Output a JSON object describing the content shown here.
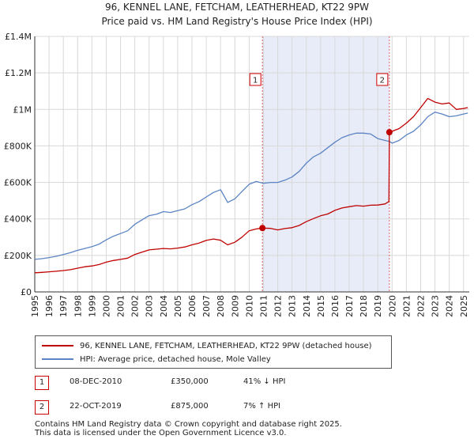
{
  "colors": {
    "price_line": "#c00000",
    "hpi_line": "#5b84c4",
    "shade": "#e8ecf8",
    "marker_box": "#cc0000",
    "grid": "#d8d8d8"
  },
  "title_line1": "96, KENNEL LANE, FETCHAM, LEATHERHEAD, KT22 9PW",
  "title_line2": "Price paid vs. HM Land Registry's House Price Index (HPI)",
  "chart_data": {
    "type": "line",
    "title": "96, KENNEL LANE, FETCHAM, LEATHERHEAD, KT22 9PW — Price paid vs. HM Land Registry's House Price Index (HPI)",
    "xlim": [
      1995,
      2025.4
    ],
    "ylim": [
      0,
      1400000
    ],
    "y_ticks": [
      0,
      200000,
      400000,
      600000,
      800000,
      1000000,
      1200000,
      1400000
    ],
    "y_tick_labels": [
      "£0",
      "£200K",
      "£400K",
      "£600K",
      "£800K",
      "£1M",
      "£1.2M",
      "£1.4M"
    ],
    "x_ticks": [
      1995,
      1996,
      1997,
      1998,
      1999,
      2000,
      2001,
      2002,
      2003,
      2004,
      2005,
      2006,
      2007,
      2008,
      2009,
      2010,
      2011,
      2012,
      2013,
      2014,
      2015,
      2016,
      2017,
      2018,
      2019,
      2020,
      2021,
      2022,
      2023,
      2024,
      2025
    ],
    "x_tick_labels": [
      "1995",
      "1996",
      "1997",
      "1998",
      "1999",
      "2000",
      "2001",
      "2002",
      "2003",
      "2004",
      "2005",
      "2006",
      "2007",
      "2008",
      "2009",
      "2010",
      "2011",
      "2012",
      "2013",
      "2014",
      "2015",
      "2016",
      "2017",
      "2018",
      "2019",
      "2020",
      "2021",
      "2022",
      "2023",
      "2024",
      "2025"
    ],
    "shaded_range": [
      2010.93,
      2019.81
    ],
    "series": [
      {
        "name": "96, KENNEL LANE, FETCHAM, LEATHERHEAD, KT22 9PW (detached house)",
        "x": [
          1995,
          1995.5,
          1996,
          1996.5,
          1997,
          1997.5,
          1998,
          1998.5,
          1999,
          1999.5,
          2000,
          2000.5,
          2001,
          2001.5,
          2002,
          2002.5,
          2003,
          2003.5,
          2004,
          2004.5,
          2005,
          2005.5,
          2006,
          2006.5,
          2007,
          2007.5,
          2008,
          2008.5,
          2009,
          2009.5,
          2010,
          2010.5,
          2010.93,
          2011.5,
          2012,
          2012.5,
          2013,
          2013.5,
          2014,
          2014.5,
          2015,
          2015.5,
          2016,
          2016.5,
          2017,
          2017.5,
          2018,
          2018.5,
          2019,
          2019.5,
          2019.78,
          2019.81,
          2020,
          2020.5,
          2021,
          2021.5,
          2022,
          2022.5,
          2023,
          2023.5,
          2024,
          2024.5,
          2025,
          2025.3
        ],
        "y": [
          105000,
          107000,
          110000,
          113000,
          117000,
          122000,
          130000,
          138000,
          142000,
          150000,
          163000,
          172000,
          178000,
          185000,
          205000,
          218000,
          230000,
          234000,
          238000,
          236000,
          240000,
          246000,
          258000,
          268000,
          282000,
          290000,
          283000,
          258000,
          272000,
          300000,
          335000,
          345000,
          350000,
          348000,
          340000,
          347000,
          352000,
          364000,
          385000,
          402000,
          417000,
          427000,
          447000,
          460000,
          467000,
          473000,
          470000,
          475000,
          476000,
          482000,
          495000,
          875000,
          880000,
          895000,
          925000,
          960000,
          1010000,
          1060000,
          1040000,
          1030000,
          1035000,
          1000000,
          1005000,
          1010000
        ]
      },
      {
        "name": "HPI: Average price, detached house, Mole Valley",
        "x": [
          1995,
          1995.5,
          1996,
          1996.5,
          1997,
          1997.5,
          1998,
          1998.5,
          1999,
          1999.5,
          2000,
          2000.5,
          2001,
          2001.5,
          2002,
          2002.5,
          2003,
          2003.5,
          2004,
          2004.5,
          2005,
          2005.5,
          2006,
          2006.5,
          2007,
          2007.5,
          2008,
          2008.5,
          2009,
          2009.5,
          2010,
          2010.5,
          2011,
          2011.5,
          2012,
          2012.5,
          2013,
          2013.5,
          2014,
          2014.5,
          2015,
          2015.5,
          2016,
          2016.5,
          2017,
          2017.5,
          2018,
          2018.5,
          2019,
          2019.5,
          2019.81,
          2020,
          2020.5,
          2021,
          2021.5,
          2022,
          2022.5,
          2023,
          2023.5,
          2024,
          2024.5,
          2025,
          2025.3
        ],
        "y": [
          178000,
          182000,
          188000,
          195000,
          205000,
          215000,
          228000,
          238000,
          248000,
          262000,
          285000,
          305000,
          320000,
          335000,
          370000,
          395000,
          418000,
          425000,
          440000,
          435000,
          445000,
          455000,
          478000,
          495000,
          520000,
          545000,
          560000,
          490000,
          510000,
          550000,
          590000,
          605000,
          595000,
          600000,
          600000,
          612000,
          630000,
          660000,
          705000,
          740000,
          760000,
          790000,
          820000,
          845000,
          860000,
          870000,
          870000,
          865000,
          840000,
          830000,
          825000,
          815000,
          830000,
          860000,
          880000,
          915000,
          960000,
          985000,
          975000,
          960000,
          965000,
          975000,
          980000
        ]
      }
    ],
    "annotations": [
      {
        "label": "1",
        "x": 2010.93,
        "y": 350000
      },
      {
        "label": "2",
        "x": 2019.81,
        "y": 875000
      }
    ]
  },
  "legend": {
    "price_label": "96, KENNEL LANE, FETCHAM, LEATHERHEAD, KT22 9PW (detached house)",
    "hpi_label": "HPI: Average price, detached house, Mole Valley"
  },
  "transactions": [
    {
      "num": "1",
      "date": "08-DEC-2010",
      "price": "£350,000",
      "hpi": "41% ↓ HPI"
    },
    {
      "num": "2",
      "date": "22-OCT-2019",
      "price": "£875,000",
      "hpi": "7% ↑ HPI"
    }
  ],
  "footer": {
    "line1": "Contains HM Land Registry data © Crown copyright and database right 2025.",
    "line2": "This data is licensed under the Open Government Licence v3.0."
  }
}
